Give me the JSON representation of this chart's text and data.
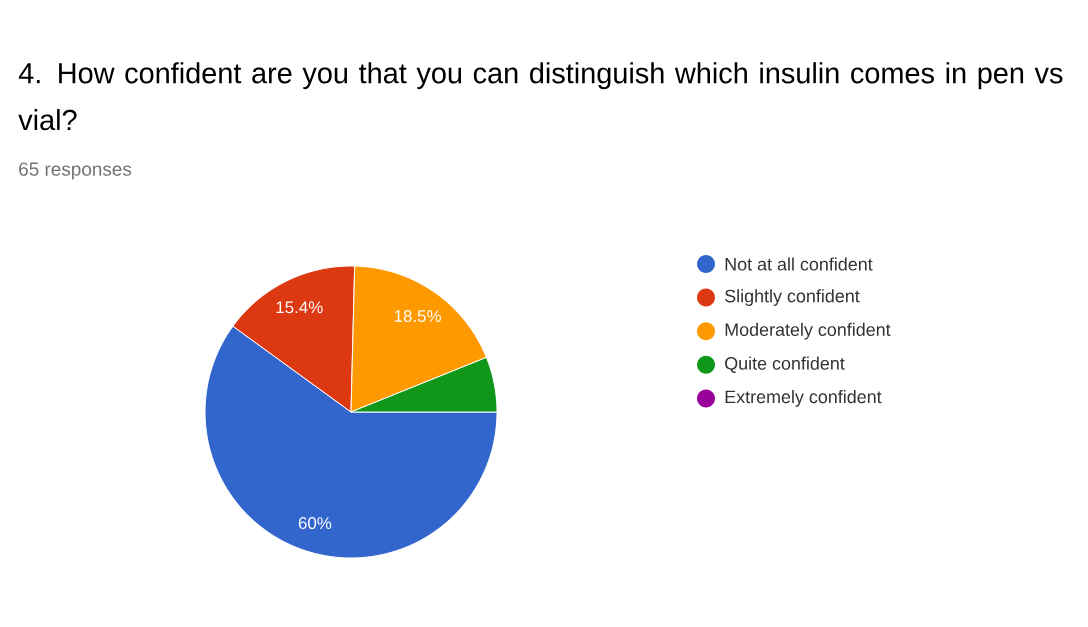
{
  "chart_data": {
    "type": "pie",
    "title": "4. How confident are you that you can distinguish which insulin comes in pen vs vial?",
    "subtitle": "65 responses",
    "categories": [
      "Not at all confident",
      "Slightly confident",
      "Moderately confident",
      "Quite confident",
      "Extremely confident"
    ],
    "values": [
      60,
      15.4,
      18.5,
      6.1,
      0
    ],
    "colors": [
      "#3366cc",
      "#dc3912",
      "#ff9900",
      "#109618",
      "#990099"
    ],
    "value_labels": [
      "60%",
      "15.4%",
      "18.5%",
      null,
      null
    ],
    "legend": "right"
  }
}
